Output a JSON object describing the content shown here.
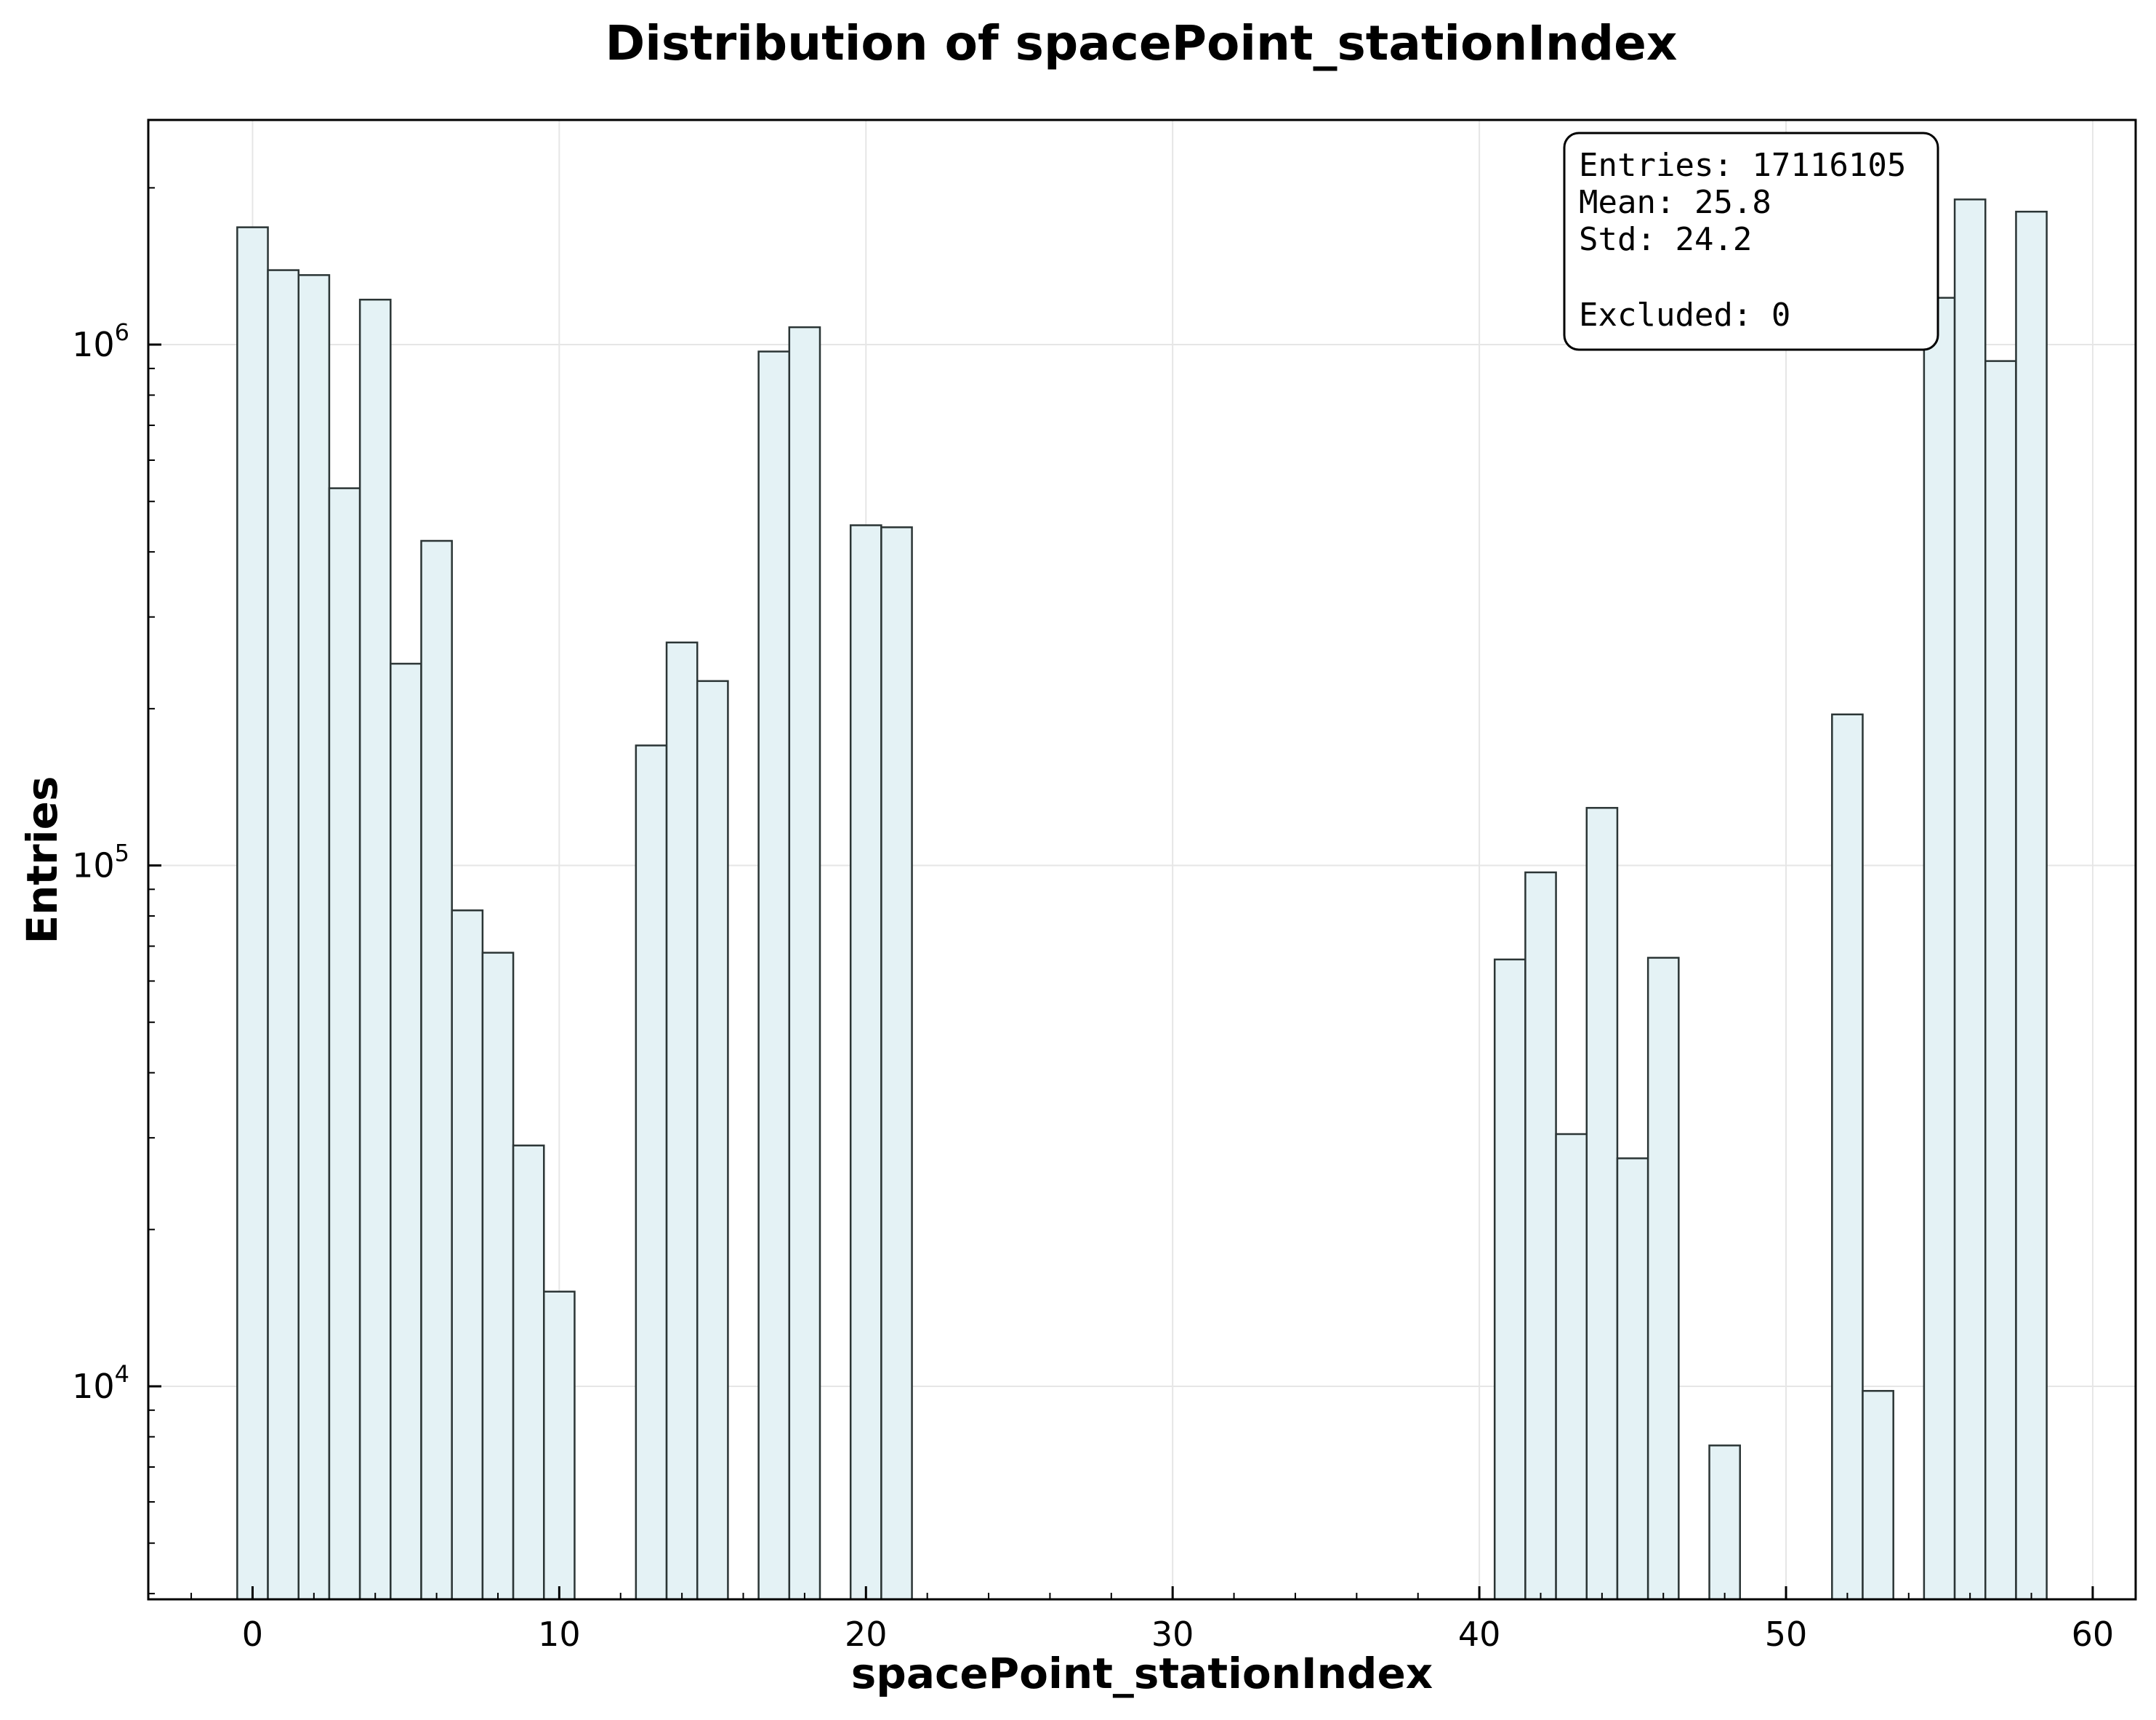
{
  "chart_data": {
    "type": "bar",
    "title": "Distribution of spacePoint_stationIndex",
    "xlabel": "spacePoint_stationIndex",
    "ylabel": "Entries",
    "yscale": "log",
    "xlim": [
      -3.4,
      61.4
    ],
    "ylim": [
      3900,
      2700000
    ],
    "grid": true,
    "bin_width": 1,
    "x_ticks": [
      0,
      10,
      20,
      30,
      40,
      50,
      60
    ],
    "y_ticks": [
      {
        "value": 10000,
        "base": "10",
        "exp": "4"
      },
      {
        "value": 100000,
        "base": "10",
        "exp": "5"
      },
      {
        "value": 1000000,
        "base": "10",
        "exp": "6"
      }
    ],
    "bins": [
      {
        "x": 0,
        "value": 1680000
      },
      {
        "x": 1,
        "value": 1390000
      },
      {
        "x": 2,
        "value": 1360000
      },
      {
        "x": 3,
        "value": 530000
      },
      {
        "x": 4,
        "value": 1220000
      },
      {
        "x": 5,
        "value": 244000
      },
      {
        "x": 6,
        "value": 420000
      },
      {
        "x": 7,
        "value": 82000
      },
      {
        "x": 8,
        "value": 68000
      },
      {
        "x": 9,
        "value": 29000
      },
      {
        "x": 10,
        "value": 15200
      },
      {
        "x": 13,
        "value": 170000
      },
      {
        "x": 14,
        "value": 268000
      },
      {
        "x": 15,
        "value": 226000
      },
      {
        "x": 17,
        "value": 970000
      },
      {
        "x": 18,
        "value": 1080000
      },
      {
        "x": 20,
        "value": 450000
      },
      {
        "x": 21,
        "value": 446000
      },
      {
        "x": 41,
        "value": 66000
      },
      {
        "x": 42,
        "value": 97000
      },
      {
        "x": 43,
        "value": 30500
      },
      {
        "x": 44,
        "value": 129000
      },
      {
        "x": 45,
        "value": 27400
      },
      {
        "x": 46,
        "value": 66500
      },
      {
        "x": 48,
        "value": 7700
      },
      {
        "x": 52,
        "value": 195000
      },
      {
        "x": 53,
        "value": 9800
      },
      {
        "x": 55,
        "value": 1230000
      },
      {
        "x": 56,
        "value": 1900000
      },
      {
        "x": 57,
        "value": 930000
      },
      {
        "x": 58,
        "value": 1800000
      }
    ],
    "stats_box": {
      "entries": "Entries: 17116105",
      "mean": "Mean: 25.8",
      "std": "Std: 24.2",
      "excluded": "Excluded: 0",
      "placement": "top-right"
    },
    "colors": {
      "bar_fill": "#e4f2f5",
      "bar_edge": "#2b3535",
      "grid": "#e6e6e6",
      "axes": "#000000"
    }
  }
}
